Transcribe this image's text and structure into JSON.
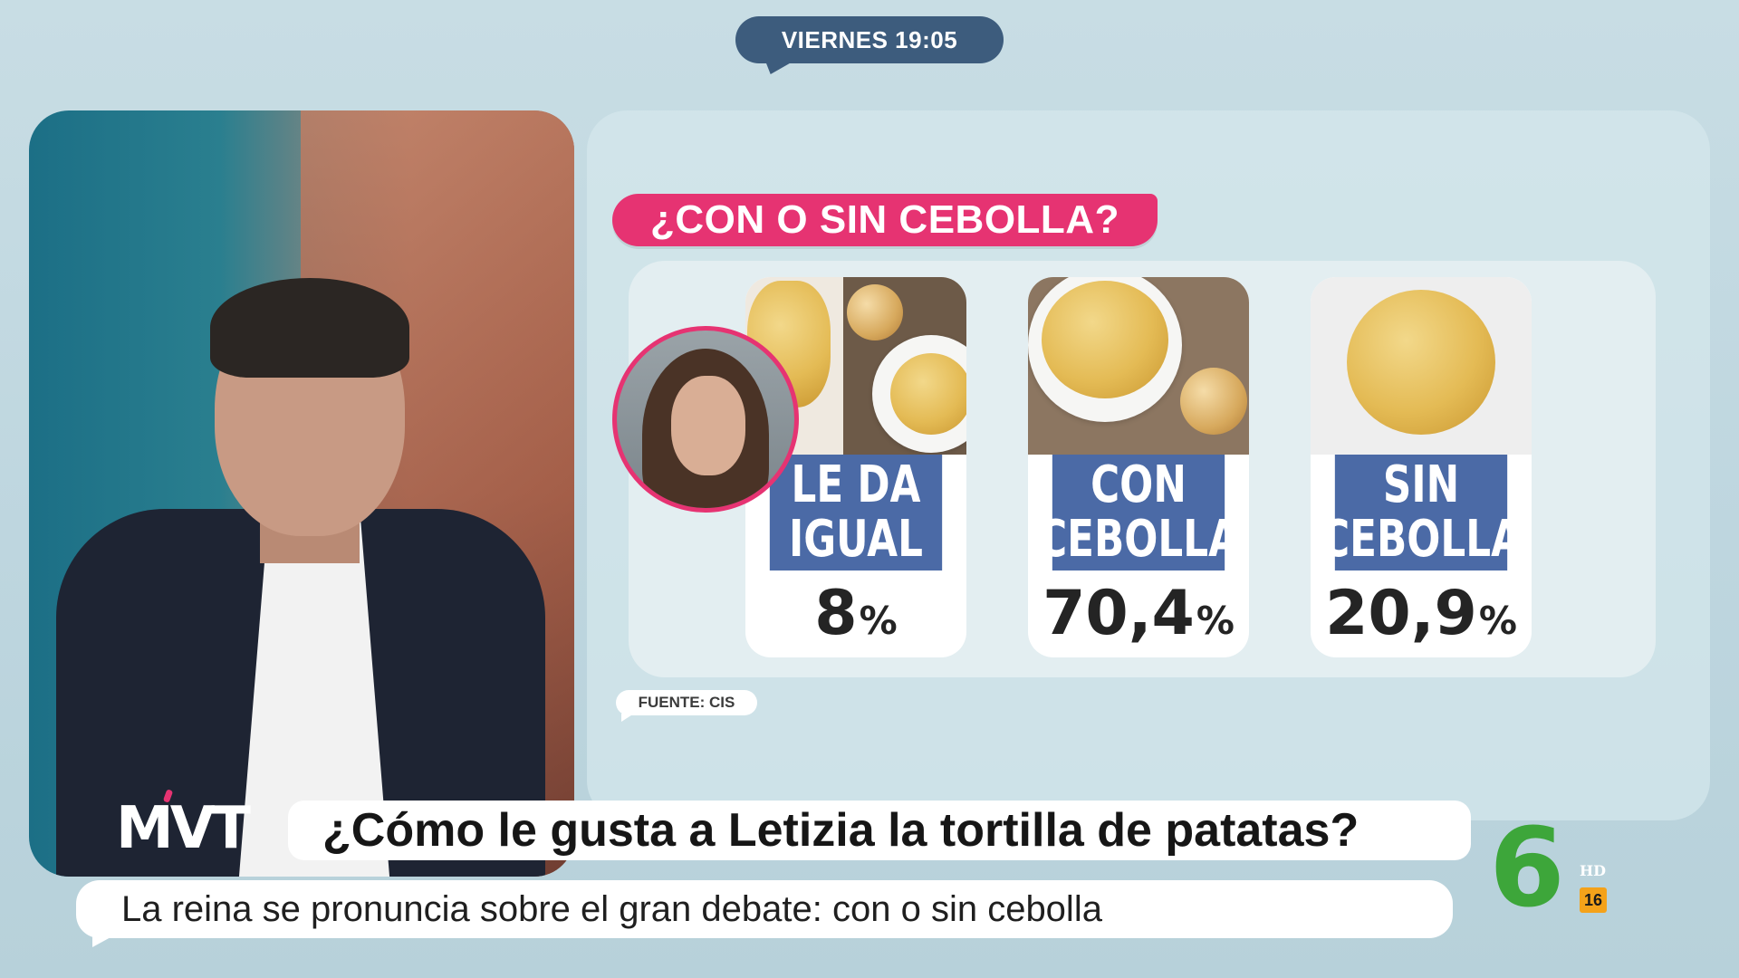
{
  "top_bar": {
    "time_label": "VIERNES 19:05"
  },
  "infographic": {
    "headline": "¿CON O SIN CEBOLLA?",
    "options": [
      {
        "label": "LE DA IGUAL",
        "value": "8",
        "unit": "%",
        "percent": 8
      },
      {
        "label": "CON CEBOLLA",
        "value": "70,4",
        "unit": "%",
        "percent": 70.4
      },
      {
        "label": "SIN CEBOLLA",
        "value": "20,9",
        "unit": "%",
        "percent": 20.9
      }
    ],
    "source": "FUENTE: CIS"
  },
  "lower_third": {
    "program_logo": "MVT",
    "title": "¿Cómo le gusta a Letizia la tortilla de patatas?",
    "subtitle": "La reina se pronuncia sobre el gran debate: con o sin cebolla"
  },
  "channel": {
    "logo": "6",
    "hd_badge": "HD",
    "age_rating": "16",
    "logo_color": "#3da63a",
    "rating_color": "#f4a21a"
  },
  "colors": {
    "accent_pink": "#e63372",
    "label_blue": "#4b6aa6",
    "time_pill": "#3d5c7d"
  }
}
